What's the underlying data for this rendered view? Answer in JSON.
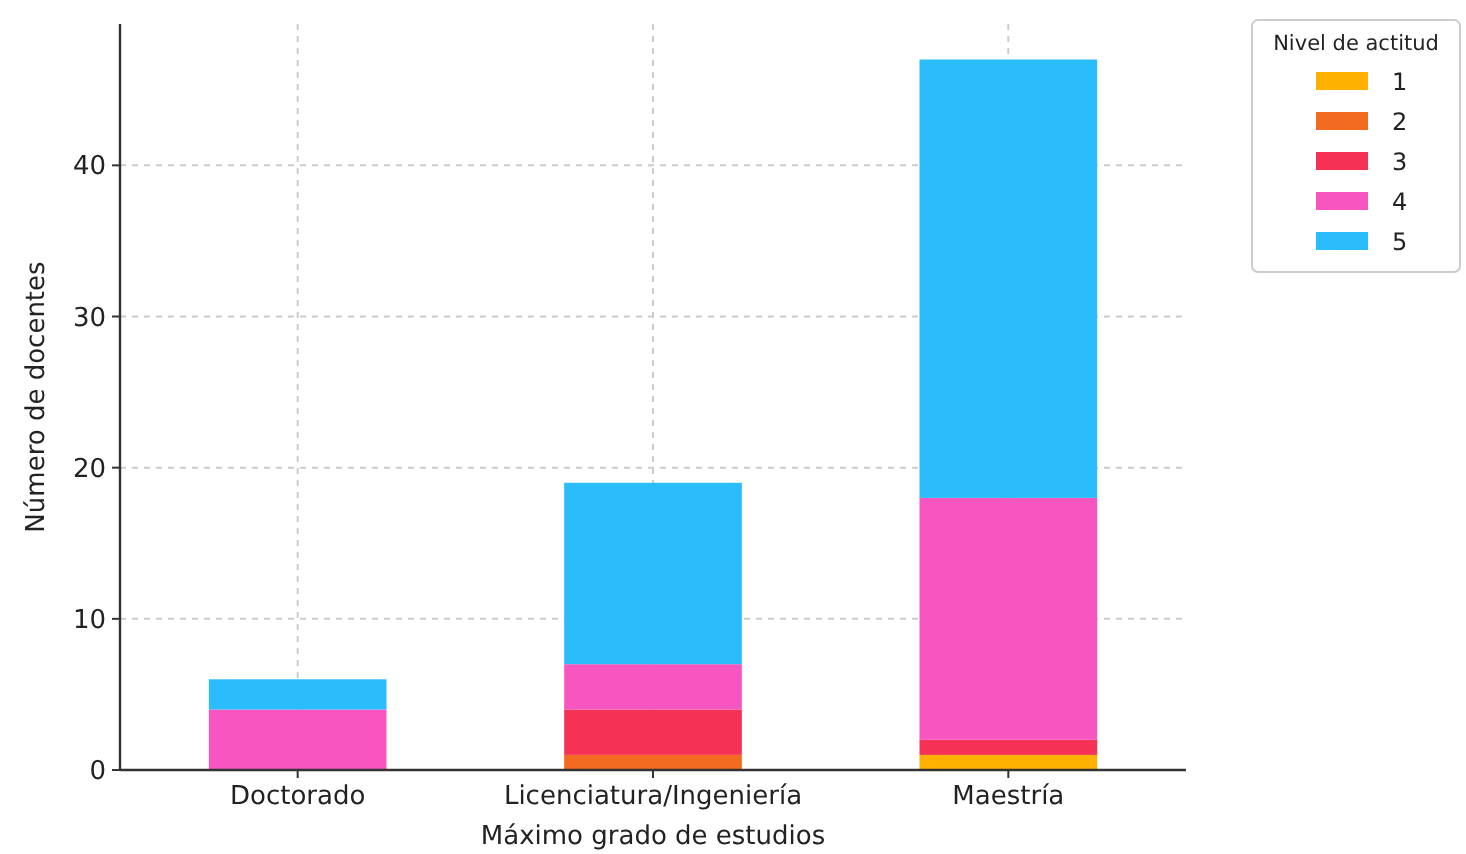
{
  "chart_data": {
    "type": "bar",
    "stacked": true,
    "xlabel": "Máximo grado de estudios",
    "ylabel": "Número de docentes",
    "legend_title": "Nivel de actitud",
    "legend": "top right",
    "grid": true,
    "categories": [
      "Doctorado",
      "Licenciatura/Ingeniería",
      "Maestría"
    ],
    "ylim": [
      0,
      49.35
    ],
    "yticks": [
      0,
      10,
      20,
      30,
      40
    ],
    "series": [
      {
        "name": "1",
        "color": "#ffb000",
        "values": [
          0,
          0,
          1
        ]
      },
      {
        "name": "2",
        "color": "#f26b21",
        "values": [
          0,
          1,
          0
        ]
      },
      {
        "name": "3",
        "color": "#f53256",
        "values": [
          0,
          3,
          1
        ]
      },
      {
        "name": "4",
        "color": "#f756c1",
        "values": [
          4,
          3,
          16
        ]
      },
      {
        "name": "5",
        "color": "#2abcfb",
        "values": [
          2,
          12,
          29
        ]
      }
    ]
  }
}
